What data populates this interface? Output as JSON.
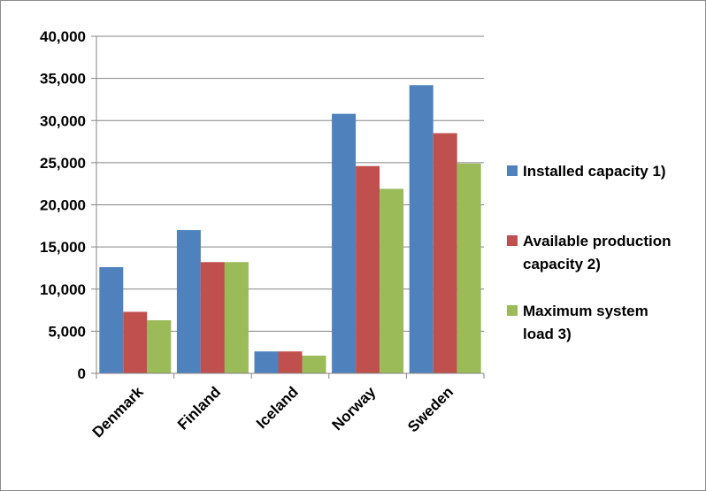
{
  "chart_data": {
    "type": "bar",
    "title": "",
    "xlabel": "",
    "ylabel": "",
    "categories": [
      "Denmark",
      "Finland",
      "Iceland",
      "Norway",
      "Sweden"
    ],
    "ylim": [
      0,
      40000
    ],
    "yticks": [
      0,
      5000,
      10000,
      15000,
      20000,
      25000,
      30000,
      35000,
      40000
    ],
    "ytick_labels": [
      "0",
      "5,000",
      "10,000",
      "15,000",
      "20,000",
      "25,000",
      "30,000",
      "35,000",
      "40,000"
    ],
    "grid": true,
    "legend_position": "right",
    "series": [
      {
        "name_lines": [
          "Installed capacity 1)"
        ],
        "color": "#4f81bd",
        "values": [
          12600,
          17000,
          2600,
          30800,
          34200
        ]
      },
      {
        "name_lines": [
          "Available production",
          "capacity 2)"
        ],
        "color": "#c0504d",
        "values": [
          7300,
          13200,
          2600,
          24600,
          28500
        ]
      },
      {
        "name_lines": [
          "Maximum system",
          "load 3)"
        ],
        "color": "#9bbb59",
        "values": [
          6300,
          13200,
          2100,
          21900,
          24900
        ]
      }
    ]
  }
}
